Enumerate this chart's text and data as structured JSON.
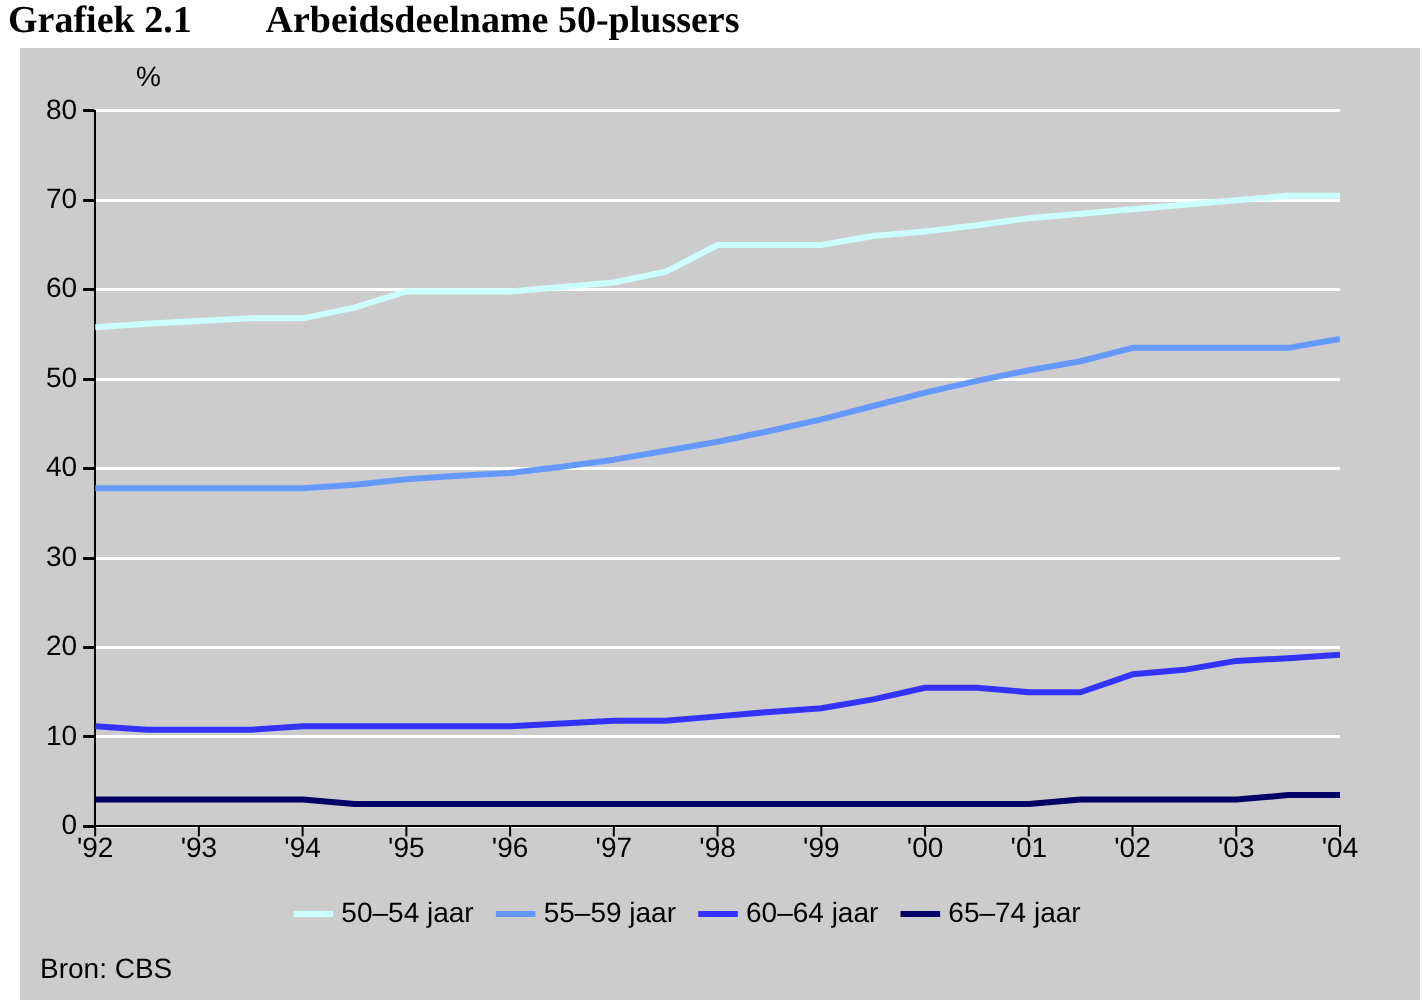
{
  "chart_data": {
    "type": "line",
    "title": "Grafiek 2.1        Arbeidsdeelname 50-plussers",
    "ylabel": "%",
    "x": [
      1992,
      1992.5,
      1993,
      1993.5,
      1994,
      1994.5,
      1995,
      1995.5,
      1996,
      1996.5,
      1997,
      1997.5,
      1998,
      1998.5,
      1999,
      1999.5,
      2000,
      2000.5,
      2001,
      2001.5,
      2002,
      2002.5,
      2003,
      2003.5,
      2004
    ],
    "series": [
      {
        "name": "50–54 jaar",
        "color": "#ccffff",
        "values": [
          55.8,
          56.2,
          56.5,
          56.8,
          56.8,
          58,
          59.8,
          59.8,
          59.8,
          60.3,
          60.8,
          62,
          65,
          65,
          65,
          66,
          66.5,
          67.2,
          68,
          68.5,
          69,
          69.5,
          70,
          70.5,
          70.5
        ]
      },
      {
        "name": "55–59 jaar",
        "color": "#6699ff",
        "values": [
          37.8,
          37.8,
          37.8,
          37.8,
          37.8,
          38.2,
          38.8,
          39.2,
          39.5,
          40.2,
          41,
          42,
          43,
          44.2,
          45.5,
          47,
          48.5,
          49.8,
          51,
          52,
          53.5,
          53.5,
          53.5,
          53.5,
          54.5
        ]
      },
      {
        "name": "60–64 jaar",
        "color": "#3333ff",
        "values": [
          11.2,
          10.8,
          10.8,
          10.8,
          11.2,
          11.2,
          11.2,
          11.2,
          11.2,
          11.5,
          11.8,
          11.8,
          12.3,
          12.8,
          13.2,
          14.2,
          15.5,
          15.5,
          15,
          15,
          17,
          17.5,
          18.5,
          18.8,
          19.2
        ]
      },
      {
        "name": "65–74 jaar",
        "color": "#000066",
        "values": [
          3,
          3,
          3,
          3,
          3,
          2.5,
          2.5,
          2.5,
          2.5,
          2.5,
          2.5,
          2.5,
          2.5,
          2.5,
          2.5,
          2.5,
          2.5,
          2.5,
          2.5,
          3,
          3,
          3,
          3,
          3.5,
          3.5
        ]
      }
    ],
    "xlim": [
      1992,
      2004
    ],
    "xticks": [
      {
        "value": 1992,
        "label": "'92"
      },
      {
        "value": 1993,
        "label": "'93"
      },
      {
        "value": 1994,
        "label": "'94"
      },
      {
        "value": 1995,
        "label": "'95"
      },
      {
        "value": 1996,
        "label": "'96"
      },
      {
        "value": 1997,
        "label": "'97"
      },
      {
        "value": 1998,
        "label": "'98"
      },
      {
        "value": 1999,
        "label": "'99"
      },
      {
        "value": 2000,
        "label": "'00"
      },
      {
        "value": 2001,
        "label": "'01"
      },
      {
        "value": 2002,
        "label": "'02"
      },
      {
        "value": 2003,
        "label": "'03"
      },
      {
        "value": 2004,
        "label": "'04"
      }
    ],
    "ylim": [
      0,
      80
    ],
    "yticks": [
      0,
      10,
      20,
      30,
      40,
      50,
      60,
      70,
      80
    ],
    "grid": "y",
    "legend": "bottom",
    "marker": "none",
    "line_style": "solid",
    "annotations": [
      "Bron: CBS"
    ]
  }
}
